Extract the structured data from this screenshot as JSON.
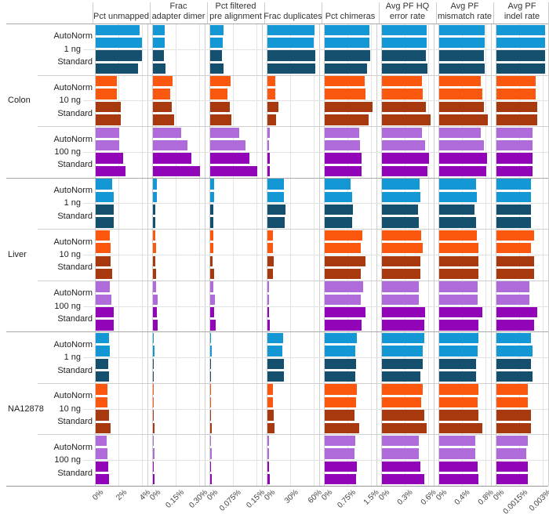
{
  "chart_title": "",
  "palette": {
    "blue_light": "#1397D5",
    "blue_dark": "#144F6D",
    "orange_light": "#FB570E",
    "orange_dark": "#A8390E",
    "purple_light": "#AE6BD9",
    "purple_dark": "#9204B8"
  },
  "chart_data": {
    "type": "bar",
    "orientation": "horizontal",
    "legend_position": "none",
    "grid": true,
    "palette": {
      "blue_light": "#1397D5",
      "blue_dark": "#144F6D",
      "orange_light": "#FB570E",
      "orange_dark": "#A8390E",
      "purple_light": "#AE6BD9",
      "purple_dark": "#9204B8"
    },
    "facets": [
      {
        "label": "Pct unmapped",
        "ticks": [
          "0%",
          "2%",
          "4%"
        ],
        "tick_values": [
          0,
          2,
          4
        ]
      },
      {
        "label": "Frac\nadapter dimer",
        "ticks": [
          "0%",
          "0.15%",
          "0.30%"
        ],
        "tick_values": [
          0,
          0.15,
          0.3
        ]
      },
      {
        "label": "Pct filtered\npre alignment",
        "ticks": [
          "0%",
          "0.075%",
          "0.15%"
        ],
        "tick_values": [
          0,
          0.075,
          0.15
        ]
      },
      {
        "label": "Frac duplicates",
        "ticks": [
          "0%",
          "30%",
          "60%"
        ],
        "tick_values": [
          0,
          30,
          60
        ]
      },
      {
        "label": "Pct chimeras",
        "ticks": [
          "0%",
          "0.75%",
          "1.5%"
        ],
        "tick_values": [
          0,
          0.75,
          1.5
        ]
      },
      {
        "label": "Avg PF HQ\nerror rate",
        "ticks": [
          "0%",
          "0.3%",
          "0.6%"
        ],
        "tick_values": [
          0,
          0.3,
          0.6
        ]
      },
      {
        "label": "Avg PF\nmismatch rate",
        "ticks": [
          "0%",
          "0.4%",
          "0.8%"
        ],
        "tick_values": [
          0,
          0.4,
          0.8
        ]
      },
      {
        "label": "Avg PF\nindel rate",
        "ticks": [
          "0%",
          "0.0015%",
          "0.003%"
        ],
        "tick_values": [
          0,
          0.0015,
          0.003
        ]
      }
    ],
    "samples": [
      {
        "label": "Colon",
        "inputs": [
          {
            "label": "1 ng",
            "norms": [
              {
                "label": "AutoNorm",
                "color_key": "blue_light",
                "values": [
                  [
                    3.7,
                    3.9
                  ],
                  [
                    0.075,
                    0.073
                  ],
                  [
                    0.042,
                    0.039
                  ],
                  [
                    60,
                    58.5
                  ],
                  [
                    1.42,
                    1.42
                  ],
                  [
                    0.57,
                    0.57
                  ],
                  [
                    0.77,
                    0.77
                  ],
                  [
                    0.0031,
                    0.0031
                  ]
                ]
              },
              {
                "label": "Standard",
                "color_key": "blue_dark",
                "values": [
                  [
                    3.9,
                    3.6
                  ],
                  [
                    0.07,
                    0.078
                  ],
                  [
                    0.037,
                    0.042
                  ],
                  [
                    60.5,
                    60.5
                  ],
                  [
                    1.46,
                    1.35
                  ],
                  [
                    0.56,
                    0.58
                  ],
                  [
                    0.76,
                    0.77
                  ],
                  [
                    0.0031,
                    0.0031
                  ]
                ]
              }
            ]
          },
          {
            "label": "10 ng",
            "norms": [
              {
                "label": "AutoNorm",
                "color_key": "orange_light",
                "values": [
                  [
                    1.8,
                    1.8
                  ],
                  [
                    0.123,
                    0.11
                  ],
                  [
                    0.066,
                    0.055
                  ],
                  [
                    9.7,
                    9.7
                  ],
                  [
                    1.28,
                    1.31
                  ],
                  [
                    0.51,
                    0.52
                  ],
                  [
                    0.71,
                    0.73
                  ],
                  [
                    0.0025,
                    0.0025
                  ]
                ]
              },
              {
                "label": "Standard",
                "color_key": "orange_dark",
                "values": [
                  [
                    2.1,
                    2.1
                  ],
                  [
                    0.12,
                    0.133
                  ],
                  [
                    0.062,
                    0.068
                  ],
                  [
                    14,
                    11.3
                  ],
                  [
                    1.53,
                    1.39
                  ],
                  [
                    0.56,
                    0.62
                  ],
                  [
                    0.76,
                    0.83
                  ],
                  [
                    0.0026,
                    0.0026
                  ]
                ]
              }
            ]
          },
          {
            "label": "100 ng",
            "norms": [
              {
                "label": "AutoNorm",
                "color_key": "purple_light",
                "values": [
                  [
                    2.0,
                    2.0
                  ],
                  [
                    0.18,
                    0.22
                  ],
                  [
                    0.092,
                    0.113
                  ],
                  [
                    3.3,
                    2.3
                  ],
                  [
                    1.1,
                    1.13
                  ],
                  [
                    0.51,
                    0.55
                  ],
                  [
                    0.71,
                    0.76
                  ],
                  [
                    0.0023,
                    0.0023
                  ]
                ]
              },
              {
                "label": "Standard",
                "color_key": "purple_dark",
                "values": [
                  [
                    2.3,
                    2.5
                  ],
                  [
                    0.245,
                    0.3
                  ],
                  [
                    0.124,
                    0.151
                  ],
                  [
                    3.3,
                    3.3
                  ],
                  [
                    1.18,
                    1.18
                  ],
                  [
                    0.6,
                    0.58
                  ],
                  [
                    0.81,
                    0.8
                  ],
                  [
                    0.0023,
                    0.0023
                  ]
                ]
              }
            ]
          }
        ]
      },
      {
        "label": "Liver",
        "inputs": [
          {
            "label": "1 ng",
            "norms": [
              {
                "label": "AutoNorm",
                "color_key": "blue_light",
                "values": [
                  [
                    1.4,
                    1.5
                  ],
                  [
                    0.025,
                    0.025
                  ],
                  [
                    0.013,
                    0.013
                  ],
                  [
                    20.7,
                    21.3
                  ],
                  [
                    0.83,
                    0.87
                  ],
                  [
                    0.48,
                    0.49
                  ],
                  [
                    0.62,
                    0.645
                  ],
                  [
                    0.0022,
                    0.0022
                  ]
                ]
              },
              {
                "label": "Standard",
                "color_key": "blue_dark",
                "values": [
                  [
                    1.5,
                    1.5
                  ],
                  [
                    0.017,
                    0.017
                  ],
                  [
                    0.009,
                    0.009
                  ],
                  [
                    23.3,
                    22.3
                  ],
                  [
                    0.89,
                    0.87
                  ],
                  [
                    0.46,
                    0.47
                  ],
                  [
                    0.6,
                    0.62
                  ],
                  [
                    0.0022,
                    0.0022
                  ]
                ]
              }
            ]
          },
          {
            "label": "10 ng",
            "norms": [
              {
                "label": "AutoNorm",
                "color_key": "orange_light",
                "values": [
                  [
                    1.2,
                    1.25
                  ],
                  [
                    0.017,
                    0.02
                  ],
                  [
                    0.009,
                    0.011
                  ],
                  [
                    7.3,
                    7.3
                  ],
                  [
                    1.2,
                    1.16
                  ],
                  [
                    0.5,
                    0.52
                  ],
                  [
                    0.64,
                    0.66
                  ],
                  [
                    0.0024,
                    0.0022
                  ]
                ]
              },
              {
                "label": "Standard",
                "color_key": "orange_dark",
                "values": [
                  [
                    1.27,
                    1.4
                  ],
                  [
                    0.015,
                    0.022
                  ],
                  [
                    0.008,
                    0.012
                  ],
                  [
                    8,
                    6.7
                  ],
                  [
                    1.3,
                    1.16
                  ],
                  [
                    0.49,
                    0.49
                  ],
                  [
                    0.66,
                    0.66
                  ],
                  [
                    0.0024,
                    0.0024
                  ]
                ]
              }
            ]
          },
          {
            "label": "100 ng",
            "norms": [
              {
                "label": "AutoNorm",
                "color_key": "purple_light",
                "values": [
                  [
                    1.2,
                    1.33
                  ],
                  [
                    0.02,
                    0.03
                  ],
                  [
                    0.011,
                    0.016
                  ],
                  [
                    1.5,
                    1.5
                  ],
                  [
                    1.22,
                    1.16
                  ],
                  [
                    0.47,
                    0.47
                  ],
                  [
                    0.65,
                    0.65
                  ],
                  [
                    0.0021,
                    0.0021
                  ]
                ]
              },
              {
                "label": "Standard",
                "color_key": "purple_dark",
                "values": [
                  [
                    1.5,
                    1.5
                  ],
                  [
                    0.025,
                    0.032
                  ],
                  [
                    0.013,
                    0.017
                  ],
                  [
                    2,
                    2.5
                  ],
                  [
                    1.3,
                    1.18
                  ],
                  [
                    0.55,
                    0.54
                  ],
                  [
                    0.73,
                    0.67
                  ],
                  [
                    0.0026,
                    0.0024
                  ]
                ]
              }
            ]
          }
        ]
      },
      {
        "label": "NA12878",
        "inputs": [
          {
            "label": "1 ng",
            "norms": [
              {
                "label": "AutoNorm",
                "color_key": "blue_light",
                "values": [
                  [
                    1.15,
                    1.2
                  ],
                  [
                    0.006,
                    0.01
                  ],
                  [
                    0.003,
                    0.005
                  ],
                  [
                    20,
                    19
                  ],
                  [
                    1.02,
                    0.97
                  ],
                  [
                    0.54,
                    0.52
                  ],
                  [
                    0.67,
                    0.65
                  ],
                  [
                    0.0022,
                    0.0023
                  ]
                ]
              },
              {
                "label": "Standard",
                "color_key": "blue_dark",
                "values": [
                  [
                    1.07,
                    1.1
                  ],
                  [
                    0.005,
                    0.006
                  ],
                  [
                    0.003,
                    0.003
                  ],
                  [
                    21.3,
                    21.3
                  ],
                  [
                    1.0,
                    0.97
                  ],
                  [
                    0.52,
                    0.49
                  ],
                  [
                    0.63,
                    0.63
                  ],
                  [
                    0.0022,
                    0.0023
                  ]
                ]
              }
            ]
          },
          {
            "label": "10 ng",
            "norms": [
              {
                "label": "AutoNorm",
                "color_key": "orange_light",
                "values": [
                  [
                    0.98,
                    0.98
                  ],
                  [
                    0.005,
                    0.006
                  ],
                  [
                    0.003,
                    0.003
                  ],
                  [
                    7.3,
                    7.3
                  ],
                  [
                    1.02,
                    0.99
                  ],
                  [
                    0.52,
                    0.5
                  ],
                  [
                    0.66,
                    0.65
                  ],
                  [
                    0.002,
                    0.002
                  ]
                ]
              },
              {
                "label": "Standard",
                "color_key": "orange_dark",
                "values": [
                  [
                    1.1,
                    1.27
                  ],
                  [
                    0.006,
                    0.008
                  ],
                  [
                    0.003,
                    0.004
                  ],
                  [
                    8,
                    8.7
                  ],
                  [
                    0.94,
                    1.09
                  ],
                  [
                    0.54,
                    0.57
                  ],
                  [
                    0.66,
                    0.73
                  ],
                  [
                    0.0022,
                    0.0022
                  ]
                ]
              }
            ]
          },
          {
            "label": "100 ng",
            "norms": [
              {
                "label": "AutoNorm",
                "color_key": "purple_light",
                "values": [
                  [
                    0.93,
                    1.0
                  ],
                  [
                    0.005,
                    0.008
                  ],
                  [
                    0.003,
                    0.004
                  ],
                  [
                    1.5,
                    2
                  ],
                  [
                    0.97,
                    0.94
                  ],
                  [
                    0.47,
                    0.47
                  ],
                  [
                    0.61,
                    0.61
                  ],
                  [
                    0.002,
                    0.0019
                  ]
                ]
              },
              {
                "label": "Standard",
                "color_key": "purple_dark",
                "values": [
                  [
                    1.04,
                    1.15
                  ],
                  [
                    0.006,
                    0.01
                  ],
                  [
                    0.003,
                    0.005
                  ],
                  [
                    2,
                    2.5
                  ],
                  [
                    1.02,
                    0.99
                  ],
                  [
                    0.49,
                    0.54
                  ],
                  [
                    0.65,
                    0.67
                  ],
                  [
                    0.002,
                    0.002
                  ]
                ]
              }
            ]
          }
        ]
      }
    ]
  }
}
